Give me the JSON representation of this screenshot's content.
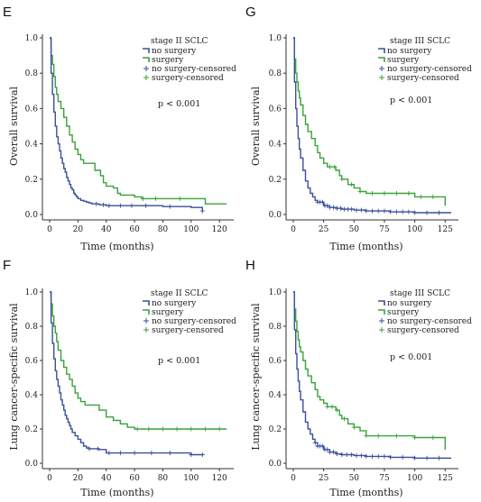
{
  "colors": {
    "no_surgery": "#3a4f9e",
    "surgery": "#3aa23a",
    "axis": "#333333"
  },
  "chart_data": [
    {
      "type": "line",
      "panel_label": "E",
      "title": "stage II SCLC",
      "annotation": "p < 0.001",
      "xlabel": "Time (months)",
      "ylabel": "Overall survival",
      "xlim": [
        0,
        125
      ],
      "ylim": [
        0,
        1.0
      ],
      "xticks": [
        "0",
        "20",
        "40",
        "60",
        "80",
        "100",
        "120"
      ],
      "xtick_values": [
        0,
        20,
        40,
        60,
        80,
        100,
        120
      ],
      "yticks": [
        "0.0",
        "0.2",
        "0.4",
        "0.6",
        "0.8",
        "1.0"
      ],
      "legend_position": "top-right",
      "legend": [
        "no surgery",
        "surgery",
        "no surgery-censored",
        "surgery-censored"
      ],
      "series": [
        {
          "name": "no surgery",
          "color_key": "no_surgery",
          "x": [
            0,
            1,
            2,
            3,
            4,
            5,
            6,
            7,
            8,
            9,
            10,
            11,
            12,
            13,
            14,
            15,
            16,
            17,
            18,
            19,
            20,
            22,
            24,
            26,
            28,
            30,
            35,
            40,
            50,
            60,
            80,
            100,
            108
          ],
          "y": [
            1.0,
            0.8,
            0.68,
            0.58,
            0.5,
            0.44,
            0.4,
            0.36,
            0.32,
            0.29,
            0.26,
            0.24,
            0.21,
            0.19,
            0.17,
            0.15,
            0.14,
            0.12,
            0.11,
            0.1,
            0.09,
            0.08,
            0.075,
            0.07,
            0.065,
            0.06,
            0.055,
            0.05,
            0.05,
            0.05,
            0.045,
            0.04,
            0.02
          ],
          "censored_x": [
            33,
            38,
            42,
            50,
            58,
            68,
            85,
            108
          ]
        },
        {
          "name": "surgery",
          "color_key": "surgery",
          "x": [
            0,
            1,
            2,
            3,
            4,
            5,
            6,
            8,
            10,
            12,
            14,
            16,
            18,
            20,
            22,
            24,
            28,
            32,
            36,
            38,
            40,
            45,
            48,
            50,
            55,
            60,
            65,
            70,
            100,
            110,
            125
          ],
          "y": [
            1.0,
            0.9,
            0.85,
            0.78,
            0.72,
            0.68,
            0.64,
            0.6,
            0.55,
            0.5,
            0.45,
            0.41,
            0.37,
            0.34,
            0.31,
            0.29,
            0.29,
            0.25,
            0.22,
            0.18,
            0.16,
            0.15,
            0.12,
            0.11,
            0.11,
            0.1,
            0.09,
            0.09,
            0.09,
            0.06,
            0.06
          ],
          "censored_x": [
            66,
            75,
            92
          ]
        }
      ]
    },
    {
      "type": "line",
      "panel_label": "G",
      "title": "stage III SCLC",
      "annotation": "p < 0.001",
      "xlabel": "Time (months)",
      "ylabel": "Overall survival",
      "xlim": [
        0,
        130
      ],
      "ylim": [
        0,
        1.0
      ],
      "xticks": [
        "0",
        "25",
        "50",
        "75",
        "100",
        "125"
      ],
      "xtick_values": [
        0,
        25,
        50,
        75,
        100,
        125
      ],
      "yticks": [
        "0.0",
        "0.2",
        "0.4",
        "0.6",
        "0.8",
        "1.0"
      ],
      "legend_position": "top-right",
      "legend": [
        "no surgery",
        "surgery",
        "no surgery-censored",
        "surgery-censored"
      ],
      "series": [
        {
          "name": "no surgery",
          "color_key": "no_surgery",
          "x": [
            0,
            1,
            2,
            3,
            4,
            5,
            6,
            8,
            10,
            12,
            14,
            16,
            18,
            20,
            25,
            30,
            35,
            40,
            50,
            60,
            70,
            80,
            100,
            120,
            130
          ],
          "y": [
            1.0,
            0.75,
            0.6,
            0.5,
            0.43,
            0.37,
            0.32,
            0.25,
            0.19,
            0.15,
            0.12,
            0.1,
            0.08,
            0.07,
            0.05,
            0.04,
            0.035,
            0.03,
            0.025,
            0.02,
            0.02,
            0.015,
            0.01,
            0.01,
            0.01
          ],
          "censored_x": [
            20,
            22,
            24,
            26,
            28,
            30,
            33,
            36,
            39,
            42,
            45,
            48,
            52,
            56,
            60,
            65,
            70,
            75,
            80,
            85,
            90,
            95,
            100,
            110,
            120
          ]
        },
        {
          "name": "surgery",
          "color_key": "surgery",
          "x": [
            0,
            1,
            2,
            3,
            4,
            5,
            6,
            8,
            10,
            12,
            15,
            18,
            20,
            22,
            25,
            28,
            30,
            35,
            38,
            40,
            45,
            50,
            55,
            60,
            80,
            100,
            110,
            125
          ],
          "y": [
            1.0,
            0.88,
            0.8,
            0.75,
            0.7,
            0.66,
            0.62,
            0.56,
            0.51,
            0.47,
            0.43,
            0.39,
            0.35,
            0.32,
            0.29,
            0.27,
            0.27,
            0.25,
            0.22,
            0.2,
            0.17,
            0.15,
            0.13,
            0.12,
            0.12,
            0.1,
            0.1,
            0.05
          ],
          "censored_x": [
            30,
            34,
            40,
            48,
            55,
            65,
            75,
            85,
            95,
            105,
            115
          ]
        }
      ]
    },
    {
      "type": "line",
      "panel_label": "F",
      "title": "stage II SCLC",
      "annotation": "p < 0.001",
      "xlabel": "Time (months)",
      "ylabel": "Lung cancer-specific survival",
      "xlim": [
        0,
        125
      ],
      "ylim": [
        0,
        1.0
      ],
      "xticks": [
        "0",
        "20",
        "40",
        "60",
        "80",
        "100",
        "120"
      ],
      "xtick_values": [
        0,
        20,
        40,
        60,
        80,
        100,
        120
      ],
      "yticks": [
        "0.0",
        "0.2",
        "0.4",
        "0.6",
        "0.8",
        "1.0"
      ],
      "legend_position": "top-right",
      "legend": [
        "no surgery",
        "surgery",
        "no surgery-censored",
        "surgery-censored"
      ],
      "series": [
        {
          "name": "no surgery",
          "color_key": "no_surgery",
          "x": [
            0,
            1,
            2,
            3,
            4,
            5,
            6,
            7,
            8,
            9,
            10,
            11,
            12,
            13,
            14,
            15,
            16,
            18,
            20,
            22,
            24,
            26,
            28,
            30,
            35,
            38,
            40,
            60,
            80,
            100,
            108
          ],
          "y": [
            1.0,
            0.82,
            0.7,
            0.61,
            0.54,
            0.49,
            0.45,
            0.41,
            0.37,
            0.34,
            0.31,
            0.28,
            0.26,
            0.24,
            0.22,
            0.2,
            0.18,
            0.16,
            0.14,
            0.12,
            0.1,
            0.09,
            0.085,
            0.085,
            0.08,
            0.08,
            0.06,
            0.06,
            0.06,
            0.05,
            0.05
          ],
          "censored_x": [
            28,
            34,
            42,
            50,
            60,
            72,
            85,
            100,
            108
          ]
        },
        {
          "name": "surgery",
          "color_key": "surgery",
          "x": [
            0,
            1,
            2,
            3,
            4,
            5,
            6,
            8,
            10,
            12,
            14,
            16,
            18,
            20,
            22,
            25,
            28,
            30,
            35,
            40,
            45,
            50,
            55,
            60,
            125
          ],
          "y": [
            1.0,
            0.93,
            0.86,
            0.8,
            0.76,
            0.71,
            0.66,
            0.6,
            0.56,
            0.52,
            0.49,
            0.45,
            0.41,
            0.38,
            0.36,
            0.34,
            0.34,
            0.34,
            0.31,
            0.27,
            0.25,
            0.23,
            0.21,
            0.2,
            0.2
          ],
          "censored_x": [
            62,
            70,
            80,
            90,
            100,
            110,
            120
          ]
        }
      ]
    },
    {
      "type": "line",
      "panel_label": "H",
      "title": "stage III SCLC",
      "annotation": "p < 0.001",
      "xlabel": "Time (months)",
      "ylabel": "Lung cancer-specific survival",
      "xlim": [
        0,
        130
      ],
      "ylim": [
        0,
        1.0
      ],
      "xticks": [
        "0",
        "25",
        "50",
        "75",
        "100",
        "125"
      ],
      "xtick_values": [
        0,
        25,
        50,
        75,
        100,
        125
      ],
      "yticks": [
        "0.0",
        "0.2",
        "0.4",
        "0.6",
        "0.8",
        "1.0"
      ],
      "legend_position": "top-right",
      "legend": [
        "no surgery",
        "surgery",
        "no surgery-censored",
        "surgery-censored"
      ],
      "series": [
        {
          "name": "no surgery",
          "color_key": "no_surgery",
          "x": [
            0,
            1,
            2,
            3,
            4,
            5,
            6,
            8,
            10,
            12,
            14,
            16,
            18,
            20,
            25,
            30,
            35,
            40,
            50,
            60,
            80,
            100,
            120,
            130
          ],
          "y": [
            1.0,
            0.78,
            0.64,
            0.55,
            0.48,
            0.42,
            0.37,
            0.3,
            0.24,
            0.2,
            0.17,
            0.14,
            0.12,
            0.1,
            0.08,
            0.065,
            0.055,
            0.05,
            0.045,
            0.04,
            0.035,
            0.03,
            0.03,
            0.03
          ],
          "censored_x": [
            18,
            20,
            22,
            24,
            26,
            28,
            30,
            33,
            36,
            40,
            44,
            48,
            52,
            56,
            60,
            65,
            70,
            75,
            80,
            90,
            100,
            110,
            120
          ]
        },
        {
          "name": "surgery",
          "color_key": "surgery",
          "x": [
            0,
            1,
            2,
            3,
            4,
            5,
            6,
            8,
            10,
            12,
            15,
            18,
            20,
            22,
            25,
            28,
            30,
            35,
            38,
            40,
            45,
            50,
            55,
            60,
            80,
            100,
            120,
            125
          ],
          "y": [
            1.0,
            0.9,
            0.83,
            0.77,
            0.72,
            0.68,
            0.65,
            0.6,
            0.55,
            0.51,
            0.47,
            0.43,
            0.39,
            0.37,
            0.35,
            0.33,
            0.33,
            0.31,
            0.28,
            0.26,
            0.23,
            0.21,
            0.19,
            0.16,
            0.16,
            0.15,
            0.15,
            0.08
          ],
          "censored_x": [
            28,
            32,
            36,
            42,
            50,
            60,
            70,
            85,
            100,
            115
          ]
        }
      ]
    }
  ]
}
